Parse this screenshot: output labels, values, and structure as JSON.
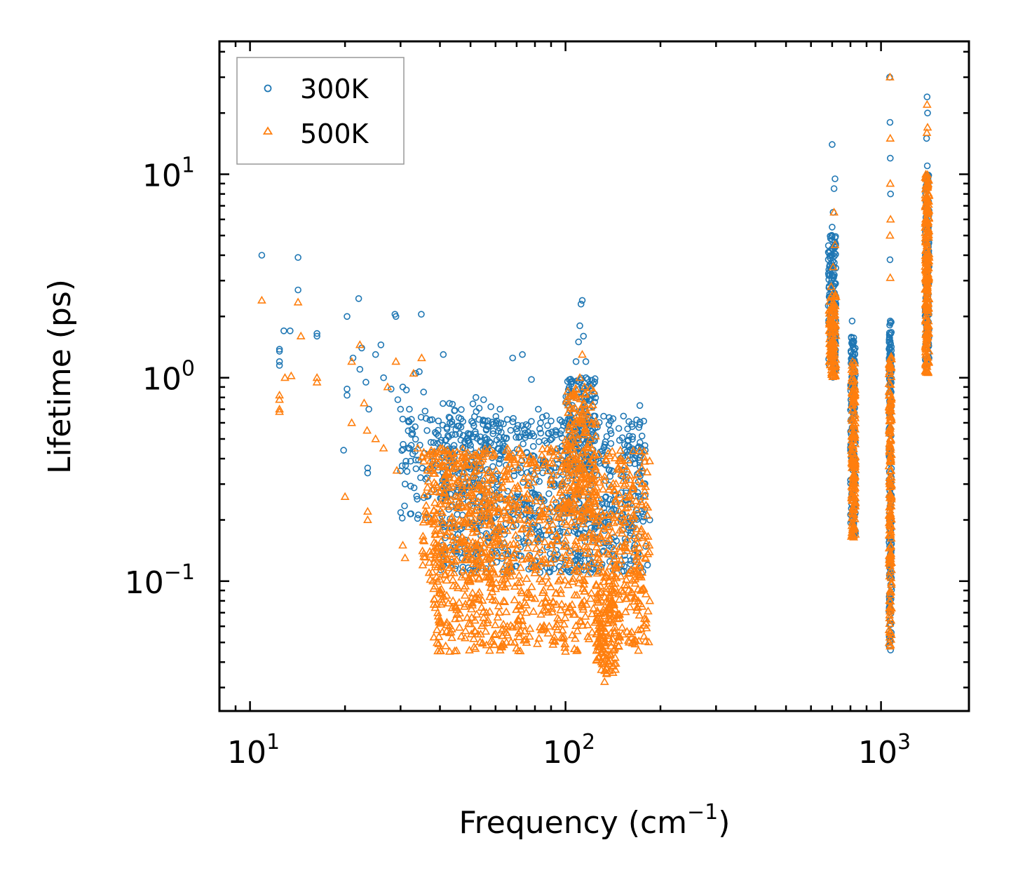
{
  "chart_data": {
    "type": "scatter",
    "xscale": "log",
    "yscale": "log",
    "xlabel": "Frequency (cm",
    "xlabel_exp": "−1",
    "xlabel_tail": ")",
    "ylabel": "Lifetime (ps)",
    "xlim": [
      8,
      1900
    ],
    "ylim": [
      0.023,
      45
    ],
    "x_ticks": [
      {
        "value": 10,
        "base": "10",
        "exp": "1"
      },
      {
        "value": 100,
        "base": "10",
        "exp": "2"
      },
      {
        "value": 1000,
        "base": "10",
        "exp": "3"
      }
    ],
    "y_ticks": [
      {
        "value": 0.1,
        "base": "10",
        "exp": "−1"
      },
      {
        "value": 1,
        "base": "10",
        "exp": "0"
      },
      {
        "value": 10,
        "base": "10",
        "exp": "1"
      }
    ],
    "legend_position": "top-left",
    "colors": {
      "s300": "#1f77b4",
      "s500": "#ff7f0e"
    },
    "series": [
      {
        "name": "300K",
        "marker": "circle",
        "points": [
          [
            10.9,
            4.0
          ],
          [
            14.2,
            3.9
          ],
          [
            14.2,
            2.7
          ],
          [
            12.4,
            1.38
          ],
          [
            12.4,
            1.35
          ],
          [
            12.4,
            1.2
          ],
          [
            12.4,
            1.15
          ],
          [
            12.8,
            1.7
          ],
          [
            13.4,
            1.7
          ],
          [
            16.3,
            1.65
          ],
          [
            16.3,
            1.6
          ],
          [
            20.3,
            2.0
          ],
          [
            22.1,
            2.45
          ],
          [
            20.3,
            0.88
          ],
          [
            20.3,
            0.82
          ],
          [
            19.8,
            0.44
          ],
          [
            21.2,
            1.25
          ],
          [
            22.3,
            1.1
          ],
          [
            22.6,
            1.4
          ],
          [
            23.3,
            0.95
          ],
          [
            23.8,
            0.7
          ],
          [
            23.6,
            0.36
          ],
          [
            23.6,
            0.34
          ],
          [
            25.0,
            1.3
          ],
          [
            26.0,
            1.45
          ],
          [
            26.5,
            1.0
          ],
          [
            28.0,
            0.88
          ],
          [
            28.8,
            2.05
          ],
          [
            29.0,
            2.0
          ],
          [
            29.4,
            0.78
          ],
          [
            30.0,
            0.7
          ],
          [
            30.5,
            0.9
          ],
          [
            31.3,
            0.87
          ],
          [
            32.0,
            0.7
          ],
          [
            33.5,
            1.05
          ],
          [
            34.4,
            1.07
          ],
          [
            34.9,
            2.05
          ],
          [
            35.5,
            0.85
          ],
          [
            36.4,
            0.55
          ],
          [
            37.2,
            0.62
          ],
          [
            38.2,
            0.48
          ],
          [
            39.5,
            0.52
          ],
          [
            41.0,
            1.3
          ],
          [
            43.0,
            0.6
          ],
          [
            46.0,
            0.58
          ],
          [
            48.0,
            0.45
          ],
          [
            52.0,
            0.8
          ],
          [
            55.0,
            0.78
          ],
          [
            58.0,
            0.72
          ],
          [
            62.0,
            0.7
          ],
          [
            68.0,
            1.25
          ],
          [
            73.0,
            1.3
          ],
          [
            76.0,
            0.58
          ],
          [
            78.0,
            0.98
          ],
          [
            82.0,
            0.7
          ],
          [
            87.0,
            0.65
          ],
          [
            93.0,
            0.55
          ],
          [
            100.0,
            0.6
          ],
          [
            104.0,
            0.95
          ],
          [
            108.0,
            1.2
          ],
          [
            110.0,
            1.5
          ],
          [
            111.0,
            1.8
          ],
          [
            112.0,
            2.3
          ],
          [
            113.0,
            2.4
          ],
          [
            114.0,
            1.6
          ],
          [
            116.0,
            1.2
          ],
          [
            118.0,
            0.9
          ],
          [
            122.0,
            0.72
          ],
          [
            130.0,
            0.42
          ],
          [
            140.0,
            0.35
          ],
          [
            150.0,
            0.33
          ],
          [
            160.0,
            0.38
          ],
          [
            168.0,
            0.62
          ],
          [
            172.0,
            0.73
          ],
          [
            178.0,
            0.3
          ],
          [
            182.0,
            0.12
          ],
          [
            185.0,
            0.2
          ],
          [
            700.0,
            14.0
          ],
          [
            715.0,
            9.5
          ],
          [
            710.0,
            8.5
          ],
          [
            705.0,
            6.5
          ],
          [
            700.0,
            5.5
          ],
          [
            695.0,
            4.0
          ],
          [
            690.0,
            3.2
          ],
          [
            685.0,
            2.5
          ],
          [
            810.0,
            1.9
          ],
          [
            815.0,
            1.5
          ],
          [
            820.0,
            1.1
          ],
          [
            1065.0,
            30.0
          ],
          [
            1068.0,
            18.0
          ],
          [
            1070.0,
            12.0
          ],
          [
            1072.0,
            8.0
          ],
          [
            1068.0,
            3.8
          ],
          [
            1070.0,
            1.9
          ],
          [
            1400.0,
            24.0
          ],
          [
            1405.0,
            20.0
          ],
          [
            1395.0,
            15.0
          ],
          [
            1402.0,
            11.0
          ]
        ],
        "bands": [
          {
            "xmin": 40,
            "xmax": 180,
            "ymin": 0.11,
            "ymax": 0.65,
            "count": 900
          },
          {
            "xmin": 30,
            "xmax": 60,
            "ymin": 0.18,
            "ymax": 0.75,
            "count": 160
          },
          {
            "xmin": 100,
            "xmax": 125,
            "ymin": 0.35,
            "ymax": 1.0,
            "count": 140
          },
          {
            "xmin": 680,
            "xmax": 720,
            "ymin": 1.0,
            "ymax": 5.2,
            "count": 140
          },
          {
            "xmin": 800,
            "xmax": 830,
            "ymin": 0.17,
            "ymax": 1.6,
            "count": 160
          },
          {
            "xmin": 1060,
            "xmax": 1080,
            "ymin": 0.045,
            "ymax": 1.9,
            "count": 180
          },
          {
            "xmin": 1380,
            "xmax": 1420,
            "ymin": 1.1,
            "ymax": 10.0,
            "count": 160
          }
        ]
      },
      {
        "name": "500K",
        "marker": "triangle",
        "points": [
          [
            10.9,
            2.4
          ],
          [
            14.2,
            2.35
          ],
          [
            14.5,
            1.6
          ],
          [
            16.3,
            1.0
          ],
          [
            16.3,
            0.95
          ],
          [
            12.4,
            0.82
          ],
          [
            12.4,
            0.78
          ],
          [
            12.4,
            0.7
          ],
          [
            12.4,
            0.68
          ],
          [
            12.9,
            1.0
          ],
          [
            13.5,
            1.02
          ],
          [
            20.0,
            0.26
          ],
          [
            21.0,
            0.6
          ],
          [
            21.0,
            1.2
          ],
          [
            22.3,
            1.45
          ],
          [
            23.0,
            0.75
          ],
          [
            23.5,
            0.55
          ],
          [
            23.6,
            0.22
          ],
          [
            23.6,
            0.2
          ],
          [
            25.0,
            0.5
          ],
          [
            26.5,
            0.45
          ],
          [
            27.3,
            0.9
          ],
          [
            29.0,
            1.2
          ],
          [
            29.2,
            0.35
          ],
          [
            30.5,
            0.15
          ],
          [
            31.0,
            0.13
          ],
          [
            33.0,
            1.05
          ],
          [
            34.0,
            0.45
          ],
          [
            35.0,
            1.25
          ],
          [
            36.0,
            0.22
          ],
          [
            38.0,
            0.1
          ],
          [
            40.0,
            0.09
          ],
          [
            42.0,
            0.085
          ],
          [
            44.0,
            0.08
          ],
          [
            48.0,
            0.085
          ],
          [
            55.0,
            0.062
          ],
          [
            60.0,
            0.055
          ],
          [
            65.0,
            0.05
          ],
          [
            70.0,
            0.06
          ],
          [
            75.0,
            0.07
          ],
          [
            80.0,
            0.082
          ],
          [
            88.0,
            0.075
          ],
          [
            95.0,
            0.1
          ],
          [
            100.0,
            0.15
          ],
          [
            108.0,
            0.6
          ],
          [
            111.0,
            1.0
          ],
          [
            113.0,
            1.3
          ],
          [
            115.0,
            0.9
          ],
          [
            120.0,
            0.5
          ],
          [
            130.0,
            0.04
          ],
          [
            133.0,
            0.032
          ],
          [
            135.0,
            0.035
          ],
          [
            140.0,
            0.05
          ],
          [
            150.0,
            0.09
          ],
          [
            160.0,
            0.11
          ],
          [
            170.0,
            0.08
          ],
          [
            175.0,
            0.075
          ],
          [
            180.0,
            0.065
          ],
          [
            185.0,
            0.08
          ],
          [
            710.0,
            6.5
          ],
          [
            715.0,
            4.5
          ],
          [
            705.0,
            3.5
          ],
          [
            695.0,
            2.8
          ],
          [
            720.0,
            2.5
          ],
          [
            1068.0,
            30.0
          ],
          [
            1070.0,
            15.0
          ],
          [
            1070.0,
            9.0
          ],
          [
            1072.0,
            6.0
          ],
          [
            1068.0,
            5.0
          ],
          [
            1070.0,
            3.1
          ],
          [
            1400.0,
            22.0
          ],
          [
            1405.0,
            17.0
          ],
          [
            1398.0,
            16.0
          ]
        ],
        "bands": [
          {
            "xmin": 38,
            "xmax": 185,
            "ymin": 0.045,
            "ymax": 0.45,
            "count": 1100
          },
          {
            "xmin": 35,
            "xmax": 60,
            "ymin": 0.1,
            "ymax": 0.45,
            "count": 180
          },
          {
            "xmin": 100,
            "xmax": 125,
            "ymin": 0.2,
            "ymax": 0.9,
            "count": 160
          },
          {
            "xmin": 125,
            "xmax": 145,
            "ymin": 0.035,
            "ymax": 0.12,
            "count": 120
          },
          {
            "xmin": 685,
            "xmax": 720,
            "ymin": 1.0,
            "ymax": 2.6,
            "count": 120
          },
          {
            "xmin": 805,
            "xmax": 830,
            "ymin": 0.16,
            "ymax": 1.2,
            "count": 160
          },
          {
            "xmin": 1060,
            "xmax": 1080,
            "ymin": 0.045,
            "ymax": 1.3,
            "count": 180
          },
          {
            "xmin": 1380,
            "xmax": 1420,
            "ymin": 1.05,
            "ymax": 10.0,
            "count": 220
          }
        ]
      }
    ]
  }
}
